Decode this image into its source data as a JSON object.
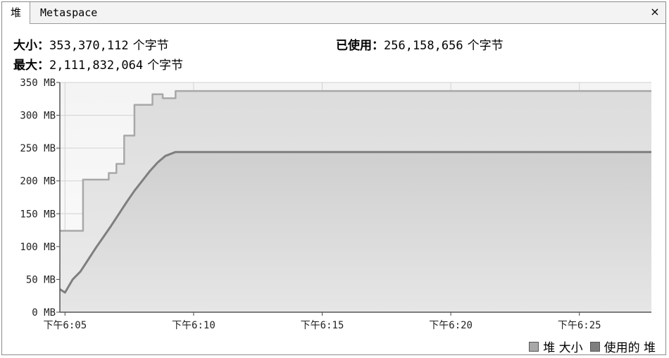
{
  "tabs": [
    {
      "label": "堆"
    },
    {
      "label": "Metaspace"
    }
  ],
  "close_label": "×",
  "stats": {
    "size_label": "大小：",
    "size_value": "353,370,112",
    "used_label": "已使用：",
    "used_value": "256,158,656",
    "max_label": "最大：",
    "max_value": "2,111,832,064",
    "unit": "个字节"
  },
  "chart_data": {
    "type": "area",
    "y_tick_labels": [
      "0 MB",
      "50 MB",
      "100 MB",
      "150 MB",
      "200 MB",
      "250 MB",
      "300 MB",
      "350 MB"
    ],
    "y_ticks": [
      0,
      50,
      100,
      150,
      200,
      250,
      300,
      350
    ],
    "ylim": [
      0,
      350
    ],
    "x_tick_labels": [
      "下午6:05",
      "下午6:10",
      "下午6:15",
      "下午6:20",
      "下午6:25"
    ],
    "x_ticks": [
      5,
      10,
      15,
      20,
      25
    ],
    "xlim": [
      4.8,
      27.8
    ],
    "grid": true,
    "legend_position": "bottom-right",
    "series": [
      {
        "name": "堆 大小",
        "color": "#a8a8a8",
        "x": [
          4.8,
          5.7,
          5.7,
          6.7,
          6.7,
          7.0,
          7.0,
          7.3,
          7.3,
          7.7,
          7.7,
          8.4,
          8.4,
          8.8,
          8.8,
          9.3,
          9.3,
          27.8
        ],
        "y": [
          124,
          124,
          202,
          202,
          212,
          212,
          226,
          226,
          269,
          269,
          316,
          316,
          332,
          332,
          326,
          326,
          337,
          337
        ]
      },
      {
        "name": "使用的 堆",
        "color": "#7f7f7f",
        "x": [
          4.8,
          5.0,
          5.3,
          5.6,
          5.9,
          6.2,
          6.5,
          6.8,
          7.1,
          7.4,
          7.7,
          8.0,
          8.3,
          8.6,
          8.9,
          9.3,
          27.8
        ],
        "y": [
          35,
          30,
          50,
          62,
          80,
          98,
          115,
          132,
          150,
          168,
          185,
          200,
          215,
          228,
          238,
          244,
          244
        ]
      }
    ]
  },
  "legend": [
    {
      "label": "堆 大小",
      "color": "#a8a8a8"
    },
    {
      "label": "使用的 堆",
      "color": "#7f7f7f"
    }
  ]
}
